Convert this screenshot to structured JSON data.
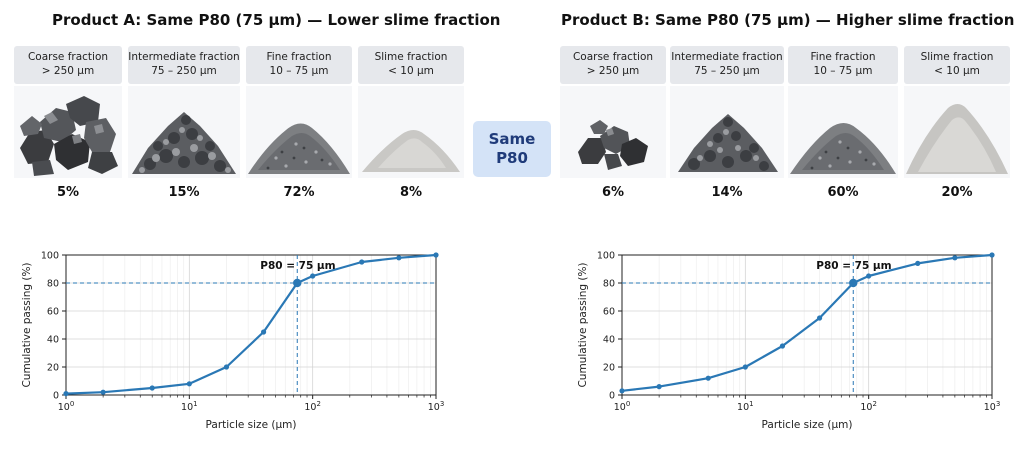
{
  "products": [
    {
      "title": "Product A: Same P80 (75 µm) — Lower slime fraction",
      "fractions": [
        {
          "name": "Coarse fraction",
          "range": "> 250 µm",
          "percent": "5%"
        },
        {
          "name": "Intermediate fraction",
          "range": "75 – 250 µm",
          "percent": "15%"
        },
        {
          "name": "Fine fraction",
          "range": "10 – 75 µm",
          "percent": "72%"
        },
        {
          "name": "Slime fraction",
          "range": "< 10 µm",
          "percent": "8%"
        }
      ]
    },
    {
      "title": "Product B: Same P80 (75 µm) — Higher slime fraction",
      "fractions": [
        {
          "name": "Coarse fraction",
          "range": "> 250 µm",
          "percent": "6%"
        },
        {
          "name": "Intermediate fraction",
          "range": "75 – 250 µm",
          "percent": "14%"
        },
        {
          "name": "Fine fraction",
          "range": "10 – 75 µm",
          "percent": "60%"
        },
        {
          "name": "Slime fraction",
          "range": "< 10 µm",
          "percent": "20%"
        }
      ]
    }
  ],
  "badge": {
    "line1": "Same",
    "line2": "P80"
  },
  "chart_data": [
    {
      "type": "line",
      "xscale": "log",
      "xlim": [
        1,
        1000
      ],
      "ylim": [
        0,
        100
      ],
      "xlabel": "Particle size (µm)",
      "ylabel": "Cumulative passing (%)",
      "grid": true,
      "x_ticks": [
        "10^0",
        "10^1",
        "10^2",
        "10^3"
      ],
      "y_ticks": [
        "0",
        "20",
        "40",
        "60",
        "80",
        "100"
      ],
      "annotation": "P80 = 75 µm",
      "p80_x": 75,
      "p80_y": 80,
      "line_color": "#2a78b5",
      "series": [
        {
          "x": [
            1,
            2,
            5,
            10,
            20,
            40,
            75,
            100,
            250,
            500,
            1000
          ],
          "y": [
            1,
            2,
            5,
            8,
            20,
            45,
            80,
            85,
            95,
            98,
            100
          ]
        }
      ]
    },
    {
      "type": "line",
      "xscale": "log",
      "xlim": [
        1,
        1000
      ],
      "ylim": [
        0,
        100
      ],
      "xlabel": "Particle size (µm)",
      "ylabel": "Cumulative passing (%)",
      "grid": true,
      "x_ticks": [
        "10^0",
        "10^1",
        "10^2",
        "10^3"
      ],
      "y_ticks": [
        "0",
        "20",
        "40",
        "60",
        "80",
        "100"
      ],
      "annotation": "P80 = 75 µm",
      "p80_x": 75,
      "p80_y": 80,
      "line_color": "#2a78b5",
      "series": [
        {
          "x": [
            1,
            2,
            5,
            10,
            20,
            40,
            75,
            100,
            250,
            500,
            1000
          ],
          "y": [
            3,
            6,
            12,
            20,
            35,
            55,
            80,
            85,
            94,
            98,
            100
          ]
        }
      ]
    }
  ]
}
